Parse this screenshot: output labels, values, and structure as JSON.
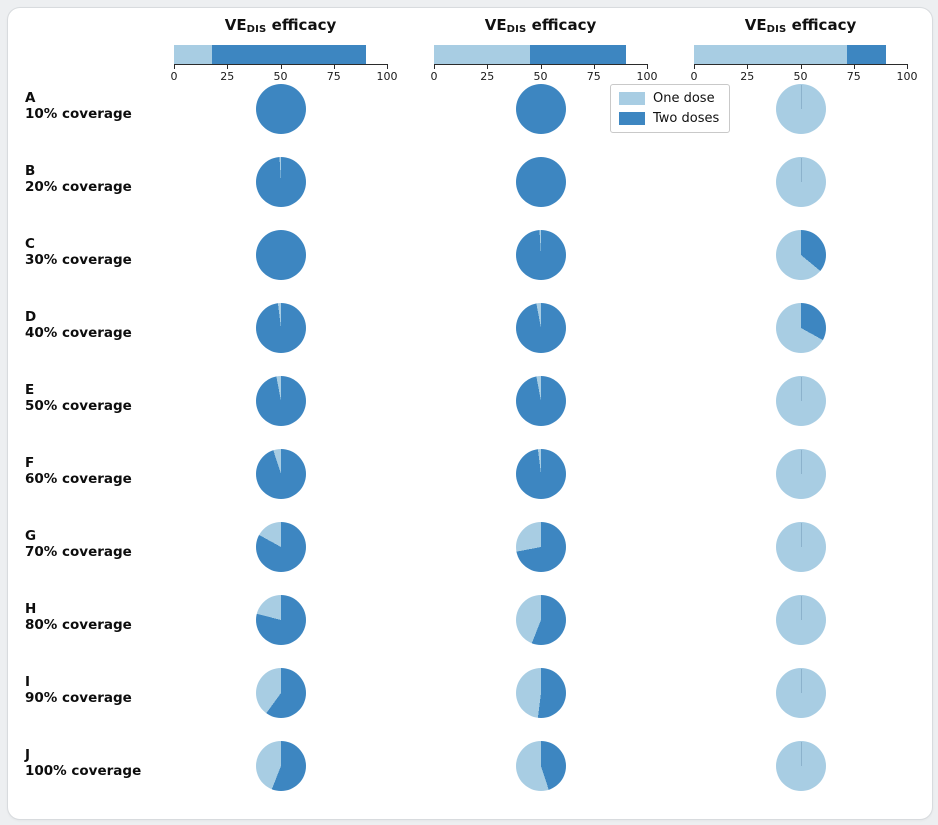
{
  "colors": {
    "one_dose": "#a8cde3",
    "two_doses": "#3d86c1",
    "axis": "#2b2b2b"
  },
  "legend": {
    "items": [
      {
        "label": "One dose",
        "color_key": "one_dose"
      },
      {
        "label": "Two doses",
        "color_key": "two_doses"
      }
    ]
  },
  "chart_data": {
    "type": "pie",
    "description": "Grid of pie charts: share of population strategy allocated to one dose (light blue) vs two doses (dark blue) for three vaccine efficacy scenarios (columns) across vaccination coverage levels (rows). Column headers are stacked horizontal bars showing VE_DIS efficacy of one dose and two doses on a 0-100 scale.",
    "legend": [
      "One dose",
      "Two doses"
    ],
    "columns": [
      {
        "title_prefix": "VE",
        "title_sub": "DIS",
        "title_suffix": " efficacy",
        "ve_one_dose": 18,
        "ve_two_doses": 90,
        "axis_range": [
          0,
          100
        ],
        "axis_ticks": [
          0,
          25,
          50,
          75,
          100
        ]
      },
      {
        "title_prefix": "VE",
        "title_sub": "DIS",
        "title_suffix": " efficacy",
        "ve_one_dose": 45,
        "ve_two_doses": 90,
        "axis_range": [
          0,
          100
        ],
        "axis_ticks": [
          0,
          25,
          50,
          75,
          100
        ]
      },
      {
        "title_prefix": "VE",
        "title_sub": "DIS",
        "title_suffix": " efficacy",
        "ve_one_dose": 72,
        "ve_two_doses": 90,
        "axis_range": [
          0,
          100
        ],
        "axis_ticks": [
          0,
          25,
          50,
          75,
          100
        ]
      }
    ],
    "rows": [
      {
        "letter": "A",
        "label": "10% coverage",
        "one_dose_pct": [
          0,
          0,
          100
        ]
      },
      {
        "letter": "B",
        "label": "20% coverage",
        "one_dose_pct": [
          1,
          0,
          100
        ]
      },
      {
        "letter": "C",
        "label": "30% coverage",
        "one_dose_pct": [
          0,
          1,
          64
        ]
      },
      {
        "letter": "D",
        "label": "40% coverage",
        "one_dose_pct": [
          2,
          3,
          67
        ]
      },
      {
        "letter": "E",
        "label": "50% coverage",
        "one_dose_pct": [
          3,
          3,
          100
        ]
      },
      {
        "letter": "F",
        "label": "60% coverage",
        "one_dose_pct": [
          5,
          2,
          100
        ]
      },
      {
        "letter": "G",
        "label": "70% coverage",
        "one_dose_pct": [
          17,
          28,
          100
        ]
      },
      {
        "letter": "H",
        "label": "80% coverage",
        "one_dose_pct": [
          21,
          44,
          100
        ]
      },
      {
        "letter": "I",
        "label": "90% coverage",
        "one_dose_pct": [
          40,
          48,
          100
        ]
      },
      {
        "letter": "J",
        "label": "100% coverage",
        "one_dose_pct": [
          44,
          55,
          100
        ]
      }
    ]
  }
}
